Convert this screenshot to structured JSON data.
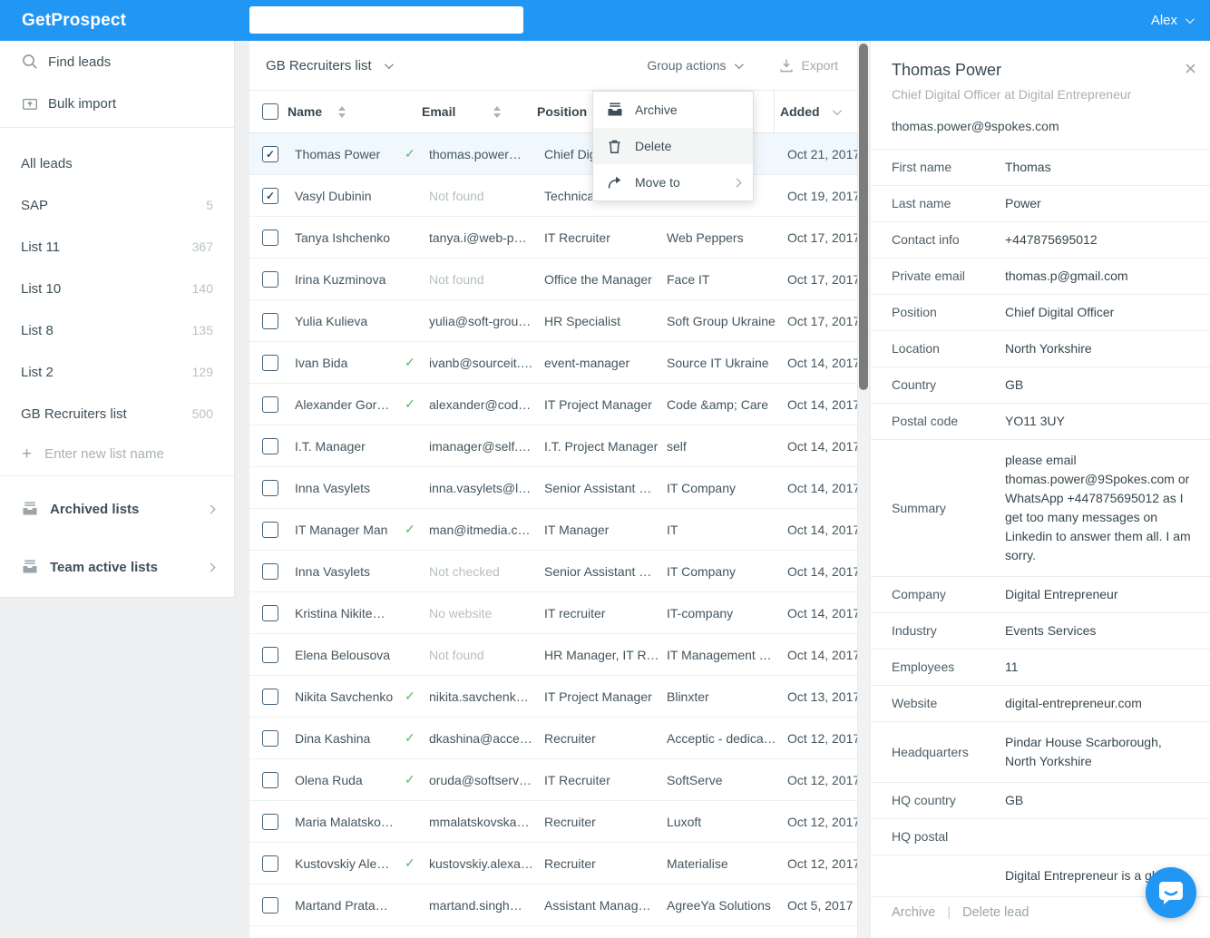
{
  "header": {
    "brand": "GetProspect",
    "search_value": "",
    "user_menu": "Alex"
  },
  "sidebar": {
    "nav": [
      {
        "label": "Find leads",
        "icon": "search-icon"
      },
      {
        "label": "Bulk import",
        "icon": "import-icon"
      }
    ],
    "lists": [
      {
        "label": "All leads",
        "count": ""
      },
      {
        "label": "SAP",
        "count": "5"
      },
      {
        "label": "List 11",
        "count": "367"
      },
      {
        "label": "List 10",
        "count": "140"
      },
      {
        "label": "List 8",
        "count": "135"
      },
      {
        "label": "List 2",
        "count": "129"
      },
      {
        "label": "GB Recruiters list",
        "count": "500"
      }
    ],
    "new_list_placeholder": "Enter new list name",
    "footer_items": [
      {
        "label": "Archived lists",
        "icon": "archive-icon"
      },
      {
        "label": "Team active lists",
        "icon": "archive-icon"
      }
    ]
  },
  "toolbar": {
    "list_selector": "GB Recruiters list",
    "group_actions": "Group actions",
    "export": "Export"
  },
  "table": {
    "columns": {
      "name": "Name",
      "email": "Email",
      "position": "Position",
      "added": "Added"
    },
    "rows": [
      {
        "name": "Thomas Power",
        "checked": true,
        "selected": true,
        "verified": true,
        "email": "thomas.power…",
        "email_muted": false,
        "position": "Chief Digi…",
        "company": "…",
        "added": "Oct 21, 2017"
      },
      {
        "name": "Vasyl Dubinin",
        "checked": true,
        "selected": false,
        "verified": false,
        "email": "Not found",
        "email_muted": true,
        "position": "Technical …",
        "company": "",
        "added": "Oct 19, 2017"
      },
      {
        "name": "Tanya Ishchenko",
        "checked": false,
        "selected": false,
        "verified": false,
        "email": "tanya.i@web-p…",
        "email_muted": false,
        "position": "IT Recruiter",
        "company": "Web Peppers",
        "added": "Oct 17, 2017"
      },
      {
        "name": "Irina Kuzminova",
        "checked": false,
        "selected": false,
        "verified": false,
        "email": "Not found",
        "email_muted": true,
        "position": "Office the Manager",
        "company": "Face IT",
        "added": "Oct 17, 2017"
      },
      {
        "name": "Yulia Kulieva",
        "checked": false,
        "selected": false,
        "verified": false,
        "email": "yulia@soft-grou…",
        "email_muted": false,
        "position": "HR Specialist",
        "company": "Soft Group Ukraine",
        "added": "Oct 17, 2017"
      },
      {
        "name": "Ivan Bida",
        "checked": false,
        "selected": false,
        "verified": true,
        "email": "ivanb@sourceit.…",
        "email_muted": false,
        "position": "event-manager",
        "company": "Source IT Ukraine",
        "added": "Oct 14, 2017"
      },
      {
        "name": "Alexander Gor…",
        "checked": false,
        "selected": false,
        "verified": true,
        "email": "alexander@cod…",
        "email_muted": false,
        "position": "IT Project Manager",
        "company": "Code &amp; Care",
        "added": "Oct 14, 2017"
      },
      {
        "name": "I.T. Manager",
        "checked": false,
        "selected": false,
        "verified": false,
        "email": "imanager@self.…",
        "email_muted": false,
        "position": "I.T. Project Manager",
        "company": "self",
        "added": "Oct 14, 2017"
      },
      {
        "name": "Inna Vasylets",
        "checked": false,
        "selected": false,
        "verified": false,
        "email": "inna.vasylets@l…",
        "email_muted": false,
        "position": "Senior Assistant …",
        "company": "IT Company",
        "added": "Oct 14, 2017"
      },
      {
        "name": "IT Manager Man",
        "checked": false,
        "selected": false,
        "verified": true,
        "email": "man@itmedia.c…",
        "email_muted": false,
        "position": "IT Manager",
        "company": "IT",
        "added": "Oct 14, 2017"
      },
      {
        "name": "Inna Vasylets",
        "checked": false,
        "selected": false,
        "verified": false,
        "email": "Not checked",
        "email_muted": true,
        "position": "Senior Assistant …",
        "company": "IT Company",
        "added": "Oct 14, 2017"
      },
      {
        "name": "Kristina Nikite…",
        "checked": false,
        "selected": false,
        "verified": false,
        "email": "No website",
        "email_muted": true,
        "position": "IT recruiter",
        "company": "IT-company",
        "added": "Oct 14, 2017"
      },
      {
        "name": "Elena Belousova",
        "checked": false,
        "selected": false,
        "verified": false,
        "email": "Not found",
        "email_muted": true,
        "position": "HR Manager, IT R…",
        "company": "IT Management …",
        "added": "Oct 14, 2017"
      },
      {
        "name": "Nikita Savchenko",
        "checked": false,
        "selected": false,
        "verified": true,
        "email": "nikita.savchenk…",
        "email_muted": false,
        "position": "IT Project Manager",
        "company": "Blinxter",
        "added": "Oct 13, 2017"
      },
      {
        "name": "Dina Kashina",
        "checked": false,
        "selected": false,
        "verified": true,
        "email": "dkashina@acce…",
        "email_muted": false,
        "position": "Recruiter",
        "company": "Acceptic - dedica…",
        "added": "Oct 12, 2017"
      },
      {
        "name": "Olena Ruda",
        "checked": false,
        "selected": false,
        "verified": true,
        "email": "oruda@softserv…",
        "email_muted": false,
        "position": "IT Recruiter",
        "company": "SoftServe",
        "added": "Oct 12, 2017"
      },
      {
        "name": "Maria Malatsko…",
        "checked": false,
        "selected": false,
        "verified": false,
        "email": "mmalatskovska…",
        "email_muted": false,
        "position": "Recruiter",
        "company": "Luxoft",
        "added": "Oct 12, 2017"
      },
      {
        "name": "Kustovskiy Ale…",
        "checked": false,
        "selected": false,
        "verified": true,
        "email": "kustovskiy.alexa…",
        "email_muted": false,
        "position": "Recruiter",
        "company": "Materialise",
        "added": "Oct 12, 2017"
      },
      {
        "name": "Martand Prata…",
        "checked": false,
        "selected": false,
        "verified": false,
        "email": "martand.singh…",
        "email_muted": false,
        "position": "Assistant Manag…",
        "company": "AgreeYa Solutions",
        "added": "Oct 5, 2017"
      }
    ]
  },
  "context_menu": {
    "items": [
      {
        "label": "Archive",
        "icon": "archive-icon",
        "active": false,
        "submenu": false
      },
      {
        "label": "Delete",
        "icon": "trash-icon",
        "active": true,
        "submenu": false
      },
      {
        "label": "Move to",
        "icon": "move-icon",
        "active": false,
        "submenu": true
      }
    ]
  },
  "detail_panel": {
    "title": "Thomas Power",
    "subtitle": "Chief Digital Officer at Digital Entrepreneur",
    "email": "thomas.power@9spokes.com",
    "fields": [
      {
        "label": "First name",
        "value": "Thomas",
        "tall": false
      },
      {
        "label": "Last name",
        "value": "Power",
        "tall": false
      },
      {
        "label": "Contact info",
        "value": "+447875695012",
        "tall": false
      },
      {
        "label": "Private email",
        "value": "thomas.p@gmail.com",
        "tall": false
      },
      {
        "label": "Position",
        "value": "Chief Digital Officer",
        "tall": false
      },
      {
        "label": "Location",
        "value": "North Yorkshire",
        "tall": false
      },
      {
        "label": "Country",
        "value": "GB",
        "tall": false
      },
      {
        "label": "Postal code",
        "value": "YO11 3UY",
        "tall": false
      },
      {
        "label": "Summary",
        "value": "please email thomas.power@9Spokes.com or WhatsApp +447875695012 as I get too many messages on Linkedin to answer them all. I am sorry.",
        "tall": true
      },
      {
        "label": "Company",
        "value": "Digital Entrepreneur",
        "tall": false
      },
      {
        "label": "Industry",
        "value": "Events Services",
        "tall": false
      },
      {
        "label": "Employees",
        "value": "11",
        "tall": false
      },
      {
        "label": "Website",
        "value": "digital-entrepreneur.com",
        "tall": false
      },
      {
        "label": "Headquarters",
        "value": "Pindar House Scarborough, North Yorkshire",
        "tall": true
      },
      {
        "label": "HQ country",
        "value": "GB",
        "tall": false
      },
      {
        "label": "HQ postal",
        "value": "",
        "tall": false
      },
      {
        "label": "",
        "value": "Digital Entrepreneur is a gl",
        "tall": true
      }
    ],
    "actions": [
      {
        "label": "Archive"
      },
      {
        "label": "Delete lead"
      }
    ],
    "actions_separator": "|"
  },
  "colors": {
    "brand_blue": "#2196f3",
    "selected_row": "#f1f8fd",
    "verified_green": "#58b75f"
  }
}
